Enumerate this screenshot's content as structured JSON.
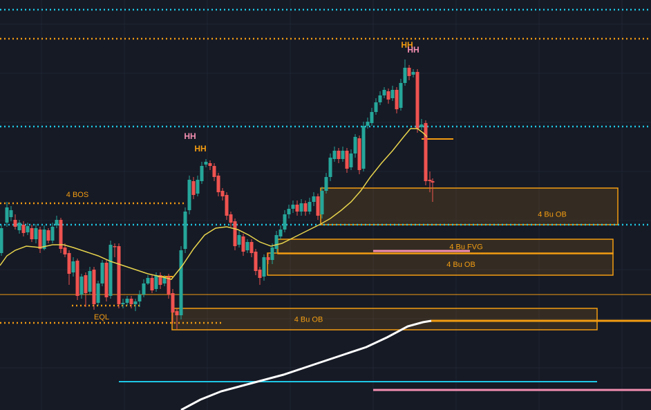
{
  "chart_data": {
    "type": "candlestick",
    "title": "",
    "grid": true,
    "ylim": [
      0,
      593
    ],
    "colors": {
      "background": "#161a25",
      "grid": "#1f2433",
      "up": "#26a69a",
      "down": "#ef5350",
      "ema_fast": "#e8d44d",
      "ema_slow": "#ffffff",
      "cyan": "#1ec8e6",
      "orange": "#f39c12",
      "pink": "#f48fb1",
      "ob_fill": "rgba(243,156,18,0.14)"
    },
    "candles": [
      [
        2,
        366,
        330,
        370,
        325
      ],
      [
        10,
        322,
        300,
        328,
        292
      ],
      [
        16,
        314,
        304,
        320,
        298
      ],
      [
        22,
        318,
        328,
        332,
        310
      ],
      [
        28,
        333,
        322,
        338,
        318
      ],
      [
        34,
        325,
        337,
        342,
        320
      ],
      [
        40,
        336,
        327,
        340,
        322
      ],
      [
        46,
        330,
        346,
        350,
        325
      ],
      [
        52,
        346,
        330,
        352,
        324
      ],
      [
        58,
        332,
        360,
        366,
        328
      ],
      [
        64,
        360,
        332,
        362,
        326
      ],
      [
        70,
        333,
        348,
        352,
        330
      ],
      [
        76,
        348,
        328,
        352,
        322
      ],
      [
        82,
        326,
        318,
        330,
        312
      ],
      [
        88,
        318,
        360,
        366,
        315
      ],
      [
        94,
        358,
        368,
        372,
        352
      ],
      [
        100,
        366,
        396,
        412,
        362
      ],
      [
        106,
        394,
        378,
        400,
        372
      ],
      [
        112,
        377,
        428,
        434,
        374
      ],
      [
        118,
        426,
        400,
        432,
        396
      ],
      [
        124,
        398,
        424,
        444,
        394
      ],
      [
        130,
        422,
        392,
        426,
        386
      ],
      [
        136,
        390,
        440,
        448,
        386
      ],
      [
        142,
        438,
        410,
        442,
        406
      ],
      [
        148,
        410,
        380,
        414,
        376
      ],
      [
        154,
        380,
        430,
        436,
        376
      ],
      [
        160,
        428,
        354,
        432,
        348
      ],
      [
        166,
        356,
        356,
        372,
        352
      ],
      [
        172,
        356,
        440,
        446,
        352
      ],
      [
        178,
        440,
        438,
        446,
        432
      ],
      [
        184,
        438,
        432,
        442,
        428
      ],
      [
        190,
        432,
        440,
        446,
        428
      ],
      [
        196,
        440,
        436,
        450,
        432
      ],
      [
        202,
        436,
        426,
        444,
        420
      ],
      [
        208,
        426,
        410,
        430,
        404
      ],
      [
        214,
        410,
        402,
        412,
        398
      ],
      [
        220,
        402,
        420,
        424,
        398
      ],
      [
        226,
        418,
        398,
        422,
        394
      ],
      [
        232,
        398,
        412,
        418,
        394
      ],
      [
        238,
        410,
        402,
        414,
        398
      ],
      [
        244,
        400,
        426,
        432,
        396
      ],
      [
        250,
        424,
        452,
        468,
        418
      ],
      [
        256,
        450,
        456,
        476,
        446
      ],
      [
        262,
        456,
        362,
        462,
        356
      ],
      [
        268,
        360,
        306,
        366,
        300
      ],
      [
        274,
        304,
        260,
        310,
        254
      ],
      [
        280,
        262,
        282,
        288,
        256
      ],
      [
        286,
        280,
        260,
        284,
        254
      ],
      [
        292,
        262,
        240,
        266,
        234
      ],
      [
        298,
        238,
        234,
        242,
        230
      ],
      [
        304,
        236,
        240,
        246,
        232
      ],
      [
        310,
        240,
        256,
        262,
        236
      ],
      [
        316,
        254,
        278,
        284,
        250
      ],
      [
        322,
        276,
        284,
        290,
        272
      ],
      [
        328,
        282,
        312,
        318,
        278
      ],
      [
        334,
        310,
        322,
        328,
        306
      ],
      [
        340,
        320,
        356,
        362,
        316
      ],
      [
        346,
        354,
        340,
        358,
        334
      ],
      [
        352,
        342,
        364,
        370,
        338
      ],
      [
        358,
        362,
        350,
        366,
        346
      ],
      [
        364,
        350,
        366,
        372,
        346
      ],
      [
        370,
        364,
        392,
        398,
        360
      ],
      [
        376,
        390,
        402,
        412,
        386
      ],
      [
        382,
        400,
        372,
        406,
        368
      ],
      [
        388,
        372,
        376,
        382,
        366
      ],
      [
        394,
        376,
        358,
        382,
        352
      ],
      [
        400,
        360,
        340,
        366,
        334
      ],
      [
        406,
        342,
        332,
        346,
        326
      ],
      [
        412,
        332,
        310,
        336,
        304
      ],
      [
        418,
        310,
        302,
        316,
        296
      ],
      [
        424,
        302,
        296,
        308,
        290
      ],
      [
        430,
        296,
        306,
        312,
        290
      ],
      [
        436,
        306,
        294,
        312,
        288
      ],
      [
        442,
        294,
        306,
        312,
        290
      ],
      [
        448,
        306,
        292,
        310,
        286
      ],
      [
        454,
        292,
        284,
        298,
        278
      ],
      [
        460,
        284,
        312,
        318,
        280
      ],
      [
        466,
        310,
        276,
        316,
        270
      ],
      [
        472,
        276,
        256,
        280,
        250
      ],
      [
        478,
        256,
        228,
        262,
        222
      ],
      [
        484,
        230,
        218,
        234,
        212
      ],
      [
        490,
        218,
        230,
        236,
        214
      ],
      [
        496,
        230,
        218,
        234,
        212
      ],
      [
        502,
        218,
        244,
        250,
        214
      ],
      [
        508,
        242,
        222,
        246,
        216
      ],
      [
        514,
        222,
        198,
        228,
        194
      ],
      [
        520,
        200,
        246,
        252,
        196
      ],
      [
        526,
        244,
        182,
        248,
        176
      ],
      [
        532,
        182,
        176,
        186,
        170
      ],
      [
        538,
        178,
        162,
        182,
        156
      ],
      [
        544,
        162,
        148,
        166,
        142
      ],
      [
        550,
        148,
        138,
        152,
        132
      ],
      [
        556,
        138,
        130,
        142,
        126
      ],
      [
        562,
        132,
        144,
        150,
        128
      ],
      [
        568,
        142,
        130,
        146,
        124
      ],
      [
        574,
        130,
        158,
        164,
        126
      ],
      [
        580,
        156,
        120,
        160,
        114
      ],
      [
        586,
        120,
        98,
        124,
        86
      ],
      [
        592,
        98,
        110,
        116,
        94
      ],
      [
        598,
        108,
        104,
        112,
        100
      ],
      [
        604,
        104,
        186,
        192,
        100
      ],
      [
        610,
        184,
        180,
        188,
        172
      ],
      [
        616,
        178,
        262,
        268,
        174
      ],
      [
        622,
        260,
        262,
        278,
        248
      ],
      [
        626,
        262,
        264,
        292,
        258
      ]
    ],
    "ema_fast": [
      [
        0,
        384
      ],
      [
        10,
        370
      ],
      [
        22,
        362
      ],
      [
        38,
        356
      ],
      [
        58,
        358
      ],
      [
        76,
        354
      ],
      [
        92,
        354
      ],
      [
        106,
        358
      ],
      [
        124,
        364
      ],
      [
        142,
        370
      ],
      [
        160,
        378
      ],
      [
        178,
        384
      ],
      [
        196,
        390
      ],
      [
        214,
        396
      ],
      [
        232,
        400
      ],
      [
        248,
        404
      ],
      [
        264,
        384
      ],
      [
        280,
        360
      ],
      [
        296,
        340
      ],
      [
        312,
        330
      ],
      [
        328,
        328
      ],
      [
        344,
        332
      ],
      [
        360,
        340
      ],
      [
        376,
        350
      ],
      [
        392,
        356
      ],
      [
        408,
        352
      ],
      [
        424,
        344
      ],
      [
        440,
        336
      ],
      [
        452,
        330
      ],
      [
        464,
        324
      ],
      [
        478,
        316
      ],
      [
        494,
        304
      ],
      [
        508,
        292
      ],
      [
        522,
        276
      ],
      [
        536,
        256
      ],
      [
        552,
        236
      ],
      [
        568,
        218
      ],
      [
        584,
        198
      ],
      [
        594,
        186
      ],
      [
        604,
        186
      ],
      [
        612,
        192
      ],
      [
        618,
        198
      ]
    ],
    "ema_slow": [
      [
        262,
        593
      ],
      [
        290,
        578
      ],
      [
        320,
        566
      ],
      [
        350,
        558
      ],
      [
        380,
        550
      ],
      [
        410,
        542
      ],
      [
        440,
        532
      ],
      [
        470,
        522
      ],
      [
        500,
        512
      ],
      [
        530,
        502
      ],
      [
        560,
        488
      ],
      [
        590,
        472
      ],
      [
        612,
        466
      ],
      [
        624,
        464
      ]
    ],
    "horizontal_lines": [
      {
        "style": "dotted",
        "color": "cyan",
        "x1": 0,
        "x2": 942,
        "y": 14
      },
      {
        "style": "dotted",
        "color": "orange",
        "x1": 0,
        "x2": 942,
        "y": 56
      },
      {
        "style": "dotted",
        "color": "cyan",
        "x1": 0,
        "x2": 942,
        "y": 183
      },
      {
        "style": "dotted",
        "color": "cyan",
        "x1": 0,
        "x2": 942,
        "y": 325
      },
      {
        "style": "dotted",
        "color": "orange",
        "x1": 0,
        "x2": 270,
        "y": 294
      },
      {
        "style": "dotted",
        "color": "orange",
        "x1": 104,
        "x2": 204,
        "y": 442
      },
      {
        "style": "dotted",
        "color": "orange",
        "x1": 0,
        "x2": 324,
        "y": 467
      },
      {
        "style": "solid",
        "color": "orange",
        "x1": 0,
        "x2": 942,
        "y": 426,
        "width": 1
      },
      {
        "style": "solid",
        "color": "orange",
        "x1": 624,
        "x2": 942,
        "y": 464,
        "width": 3
      },
      {
        "style": "solid",
        "color": "orange",
        "x1": 610,
        "x2": 656,
        "y": 201,
        "width": 2
      },
      {
        "style": "solid",
        "color": "orange",
        "x1": 226,
        "x2": 250,
        "y": 400,
        "width": 2
      },
      {
        "style": "solid",
        "color": "cyan",
        "x1": 172,
        "x2": 864,
        "y": 552,
        "width": 2
      },
      {
        "style": "solid",
        "color": "pink",
        "x1": 540,
        "x2": 942,
        "y": 564,
        "width": 3
      },
      {
        "style": "solid",
        "color": "pink",
        "x1": 540,
        "x2": 680,
        "y": 363,
        "width": 3
      }
    ],
    "zones": [
      {
        "label": "4 Bu OB",
        "x1": 464,
        "x2": 894,
        "y1": 272,
        "y2": 325
      },
      {
        "label": "4 Bu FVG",
        "x1": 402,
        "x2": 887,
        "y1": 346,
        "y2": 367
      },
      {
        "label": "4 Bu OB",
        "x1": 387,
        "x2": 887,
        "y1": 366,
        "y2": 398
      },
      {
        "label": "4 Bu OB",
        "x1": 249,
        "x2": 864,
        "y1": 446,
        "y2": 477
      }
    ],
    "annotations": [
      {
        "text": "4 BOS",
        "x": 112,
        "y": 285,
        "color": "orange"
      },
      {
        "text": "EQL",
        "x": 147,
        "y": 462,
        "color": "orange"
      },
      {
        "text": "HH",
        "x": 275,
        "y": 201,
        "color": "pink"
      },
      {
        "text": "HH",
        "x": 290,
        "y": 219,
        "color": "orange"
      },
      {
        "text": "HH",
        "x": 589,
        "y": 69,
        "color": "orange"
      },
      {
        "text": "HH",
        "x": 598,
        "y": 76,
        "color": "pink"
      }
    ]
  }
}
